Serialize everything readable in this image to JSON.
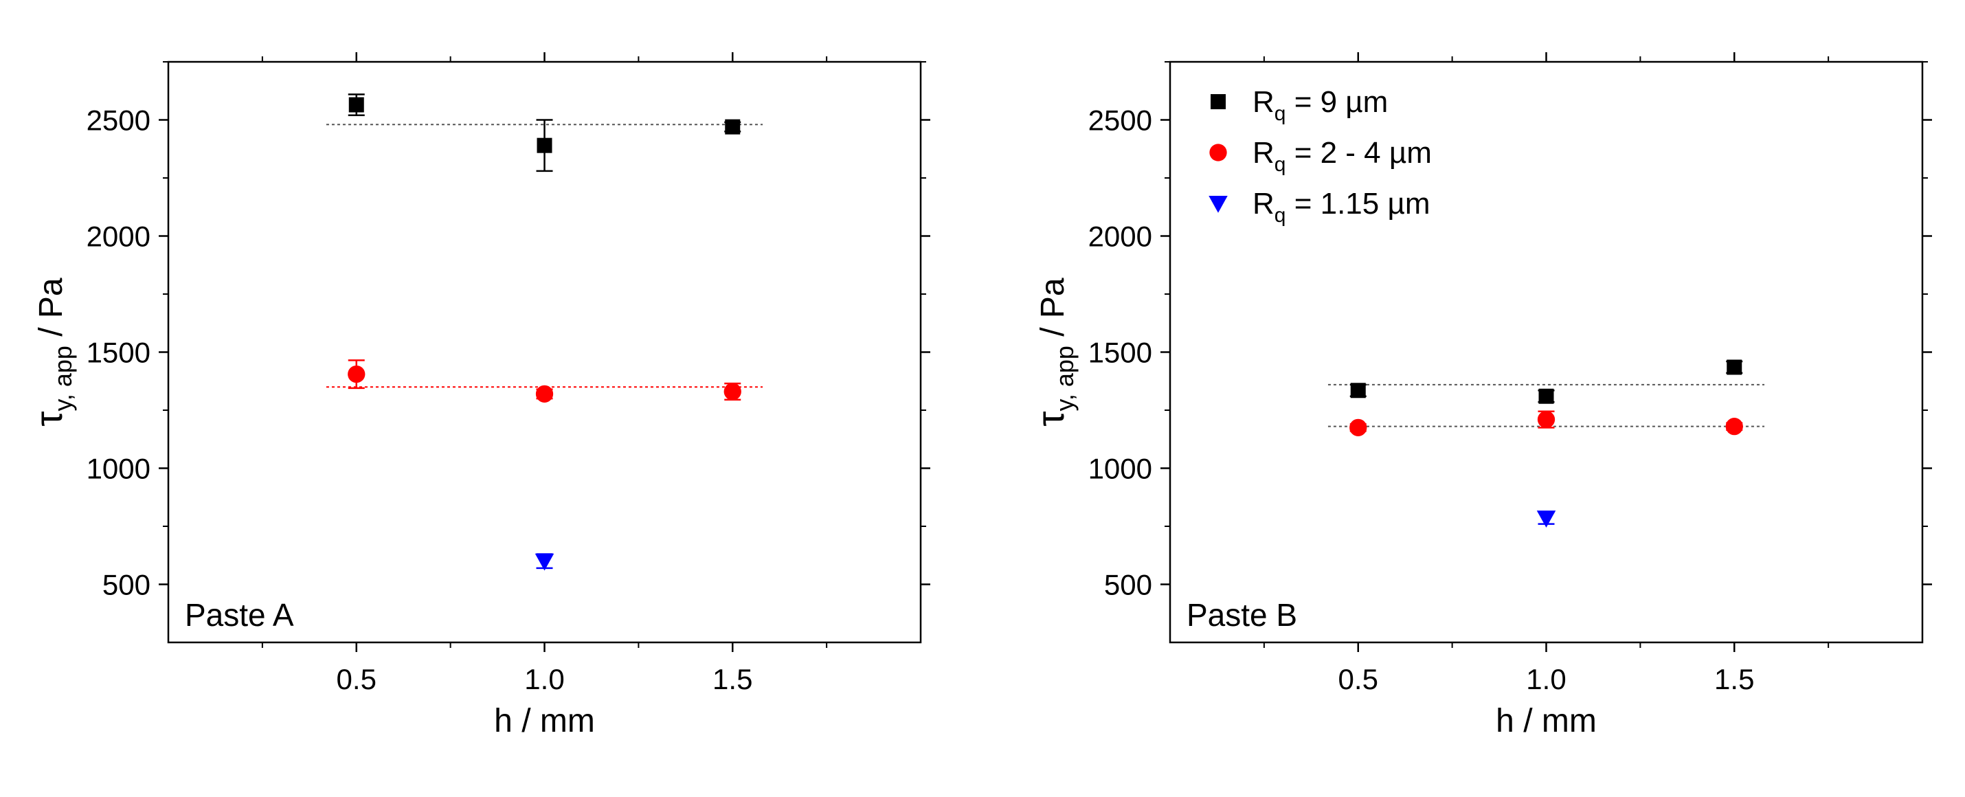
{
  "chart_data": [
    {
      "type": "scatter",
      "panel_label": "Paste A",
      "xlabel": "h / mm",
      "ylabel": {
        "main": "τ",
        "sub": "y, app",
        "rest": " / Pa"
      },
      "xlim": [
        0.0,
        2.0
      ],
      "ylim": [
        250,
        2750
      ],
      "xticks": [
        0.5,
        1.0,
        1.5
      ],
      "xtick_labels": [
        "0.5",
        "1.0",
        "1.5"
      ],
      "yticks": [
        500,
        1000,
        1500,
        2000,
        2500
      ],
      "ytick_labels": [
        "500",
        "1000",
        "1500",
        "2000",
        "2500"
      ],
      "grid": false,
      "legend": false,
      "series": [
        {
          "name": "Rq = 9 µm",
          "marker": "square",
          "color": "#000000",
          "points": [
            {
              "x": 0.5,
              "y": 2565,
              "err": 45
            },
            {
              "x": 1.0,
              "y": 2390,
              "err": 110
            },
            {
              "x": 1.5,
              "y": 2470,
              "err": 20
            }
          ],
          "mean_line": {
            "y": 2480,
            "x": [
              0.42,
              1.58
            ],
            "color": "#555555"
          }
        },
        {
          "name": "Rq = 2 - 4 µm",
          "marker": "circle",
          "color": "#ff0000",
          "points": [
            {
              "x": 0.5,
              "y": 1405,
              "err": 60
            },
            {
              "x": 1.0,
              "y": 1320,
              "err": 20
            },
            {
              "x": 1.5,
              "y": 1330,
              "err": 35
            }
          ],
          "mean_line": {
            "y": 1350,
            "x": [
              0.42,
              1.58
            ],
            "color": "#ff0000"
          }
        },
        {
          "name": "Rq = 1.15 µm",
          "marker": "triangle-down",
          "color": "#0000ff",
          "points": [
            {
              "x": 1.0,
              "y": 600,
              "err": 30
            }
          ]
        }
      ]
    },
    {
      "type": "scatter",
      "panel_label": "Paste B",
      "xlabel": "h / mm",
      "ylabel": {
        "main": "τ",
        "sub": "y, app",
        "rest": " / Pa"
      },
      "xlim": [
        0.0,
        2.0
      ],
      "ylim": [
        250,
        2750
      ],
      "xticks": [
        0.5,
        1.0,
        1.5
      ],
      "xtick_labels": [
        "0.5",
        "1.0",
        "1.5"
      ],
      "yticks": [
        500,
        1000,
        1500,
        2000,
        2500
      ],
      "ytick_labels": [
        "500",
        "1000",
        "1500",
        "2000",
        "2500"
      ],
      "grid": false,
      "legend": "top-left",
      "series": [
        {
          "name": "Rq = 9 µm",
          "marker": "square",
          "color": "#000000",
          "points": [
            {
              "x": 0.5,
              "y": 1335,
              "err": 25
            },
            {
              "x": 1.0,
              "y": 1310,
              "err": 25
            },
            {
              "x": 1.5,
              "y": 1435,
              "err": 25
            }
          ],
          "mean_line": {
            "y": 1360,
            "x": [
              0.42,
              1.58
            ],
            "color": "#555555"
          }
        },
        {
          "name": "Rq = 2 - 4 µm",
          "marker": "circle",
          "color": "#ff0000",
          "points": [
            {
              "x": 0.5,
              "y": 1175,
              "err": 15
            },
            {
              "x": 1.0,
              "y": 1210,
              "err": 35
            },
            {
              "x": 1.5,
              "y": 1180,
              "err": 15
            }
          ],
          "mean_line": {
            "y": 1180,
            "x": [
              0.42,
              1.58
            ],
            "color": "#555555"
          }
        },
        {
          "name": "Rq = 1.15 µm",
          "marker": "triangle-down",
          "color": "#0000ff",
          "points": [
            {
              "x": 1.0,
              "y": 785,
              "err": 25
            }
          ]
        }
      ]
    }
  ],
  "legend": {
    "entries": [
      {
        "marker": "square",
        "color": "#000000",
        "prefix": "R",
        "sub": "q",
        "suffix": " = 9 µm"
      },
      {
        "marker": "circle",
        "color": "#ff0000",
        "prefix": "R",
        "sub": "q",
        "suffix": " = 2 - 4 µm"
      },
      {
        "marker": "triangle-down",
        "color": "#0000ff",
        "prefix": "R",
        "sub": "q",
        "suffix": " = 1.15 µm"
      }
    ]
  }
}
